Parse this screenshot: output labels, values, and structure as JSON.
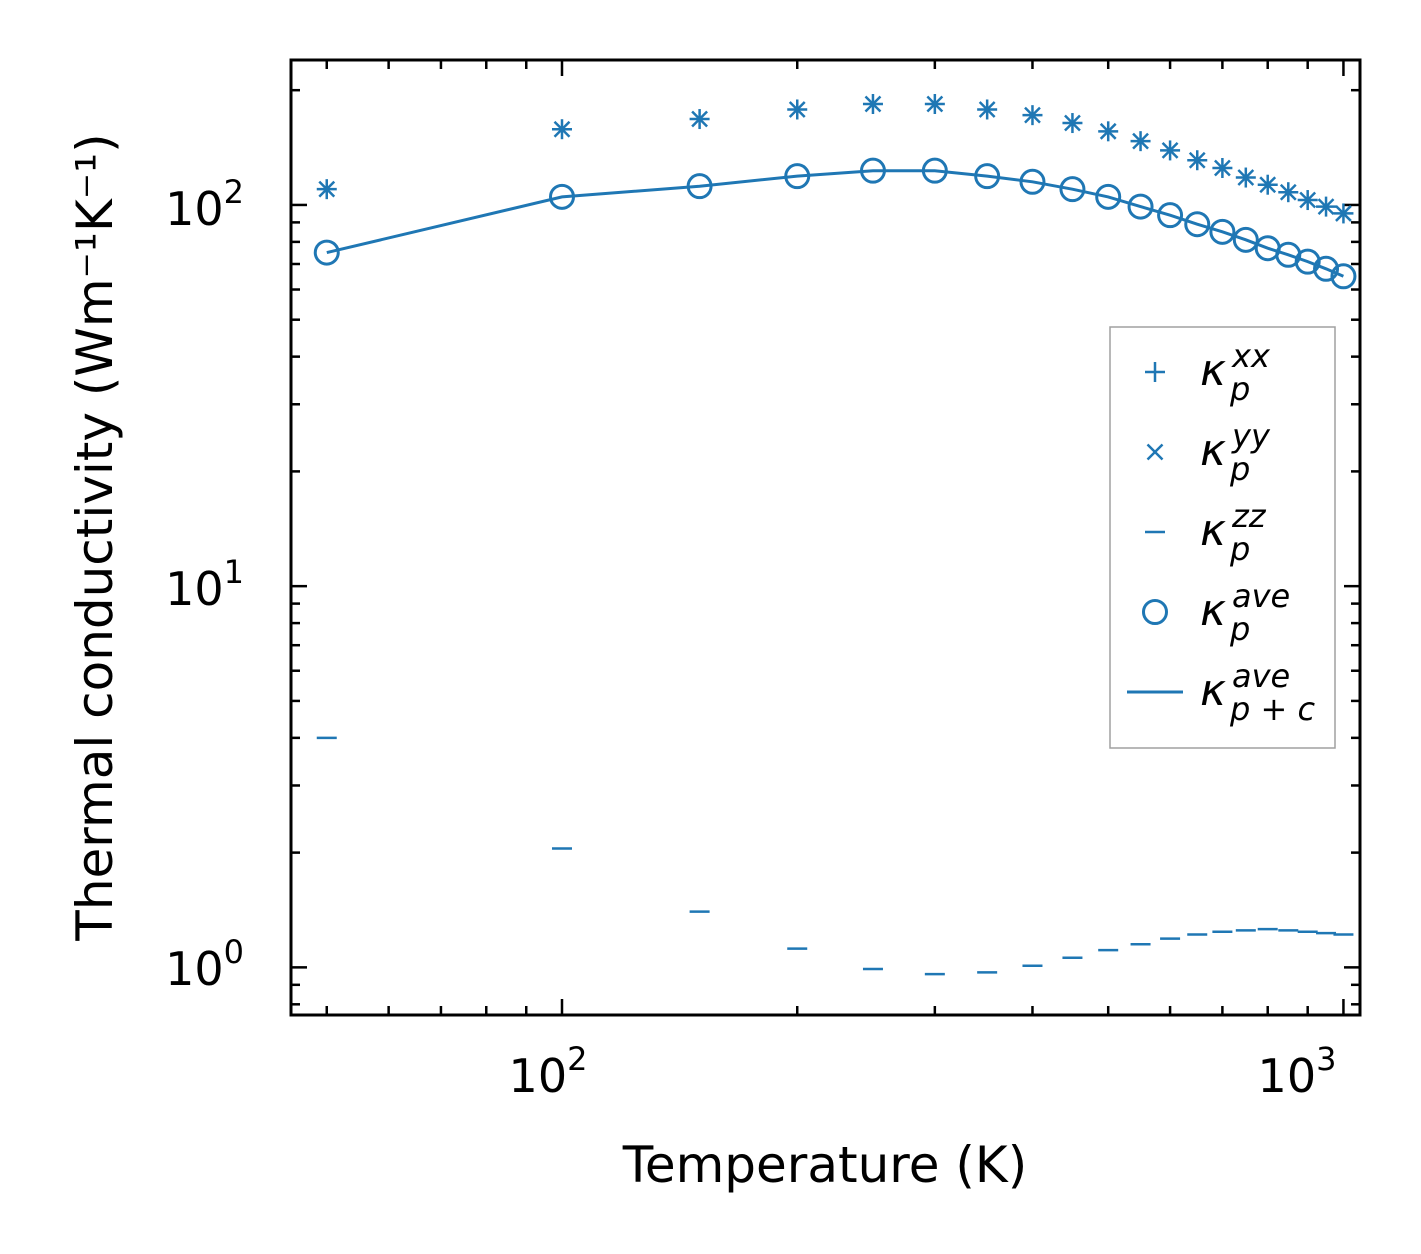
{
  "chart_data": {
    "type": "scatter",
    "xscale": "log",
    "yscale": "log",
    "xlabel": "Temperature (K)",
    "ylabel": "Thermal conductivity (Wm⁻¹K⁻¹)",
    "xlim": [
      45,
      1050
    ],
    "ylim": [
      0.75,
      240
    ],
    "xticks": [
      {
        "base": "10",
        "exp": "2"
      },
      {
        "base": "10",
        "exp": "3"
      }
    ],
    "yticks": [
      {
        "base": "10",
        "exp": "0"
      },
      {
        "base": "10",
        "exp": "1"
      },
      {
        "base": "10",
        "exp": "2"
      }
    ],
    "color": "#1f77b4",
    "x": [
      50,
      100,
      150,
      200,
      250,
      300,
      350,
      400,
      450,
      500,
      550,
      600,
      650,
      700,
      750,
      800,
      850,
      900,
      950,
      1000
    ],
    "series": [
      {
        "name": "kappa_p_xx",
        "marker": "plus",
        "values": [
          110,
          158,
          168,
          178,
          184,
          184,
          178,
          172,
          164,
          156,
          147,
          139,
          131,
          125,
          118,
          113,
          108,
          103,
          99,
          95
        ]
      },
      {
        "name": "kappa_p_yy",
        "marker": "x",
        "values": [
          110,
          158,
          168,
          178,
          184,
          184,
          178,
          172,
          164,
          156,
          147,
          139,
          131,
          125,
          118,
          113,
          108,
          103,
          99,
          95
        ]
      },
      {
        "name": "kappa_p_zz",
        "marker": "hline",
        "values": [
          4.0,
          2.05,
          1.4,
          1.12,
          0.99,
          0.96,
          0.97,
          1.01,
          1.06,
          1.11,
          1.15,
          1.19,
          1.22,
          1.24,
          1.25,
          1.26,
          1.25,
          1.24,
          1.23,
          1.22
        ]
      },
      {
        "name": "kappa_p_ave",
        "marker": "circle",
        "values": [
          75,
          105,
          112,
          119,
          123,
          123,
          119,
          115,
          110,
          105,
          99,
          94,
          89,
          85,
          81,
          77,
          74,
          71,
          68,
          65
        ]
      },
      {
        "name": "kappa_pc_ave",
        "marker": "line",
        "values": [
          75,
          105,
          112,
          119,
          123,
          123,
          119,
          115,
          110,
          105,
          99,
          94,
          89,
          85,
          81,
          77,
          74,
          71,
          68,
          65
        ]
      }
    ],
    "legend": {
      "position": "center-right",
      "entries": [
        {
          "symbol": "κ",
          "sub": "p",
          "sup": "xx"
        },
        {
          "symbol": "κ",
          "sub": "p",
          "sup": "yy"
        },
        {
          "symbol": "κ",
          "sub": "p",
          "sup": "zz"
        },
        {
          "symbol": "κ",
          "sub": "p",
          "sup": "ave"
        },
        {
          "symbol": "κ",
          "sub": "p + c",
          "sup": "ave"
        }
      ]
    }
  }
}
